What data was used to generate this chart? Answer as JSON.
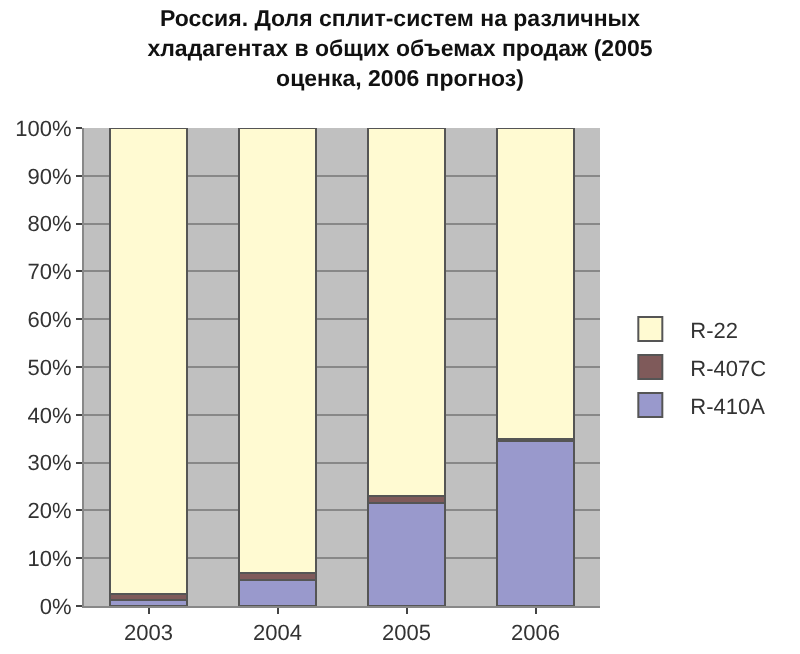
{
  "chart_data": {
    "type": "bar",
    "title": "Россия. Доля сплит-систем на различных хладагентах в общих объемах продаж (2005 оценка, 2006 прогноз)",
    "categories": [
      "2003",
      "2004",
      "2005",
      "2006"
    ],
    "series": [
      {
        "name": "R-410A",
        "color": "#9999cc",
        "values": [
          1.2,
          5.5,
          21.5,
          34.5
        ]
      },
      {
        "name": "R-407C",
        "color": "#7f5a5a",
        "values": [
          1.3,
          1.5,
          1.5,
          0.5
        ]
      },
      {
        "name": "R-22",
        "color": "#fffad2",
        "values": [
          97.5,
          93,
          77,
          65
        ]
      }
    ],
    "stacked": true,
    "ylim": [
      0,
      100
    ],
    "yticks": [
      {
        "value": 0,
        "label": "0%"
      },
      {
        "value": 10,
        "label": "10%"
      },
      {
        "value": 20,
        "label": "20%"
      },
      {
        "value": 30,
        "label": "30%"
      },
      {
        "value": 40,
        "label": "40%"
      },
      {
        "value": 50,
        "label": "50%"
      },
      {
        "value": 60,
        "label": "60%"
      },
      {
        "value": 70,
        "label": "70%"
      },
      {
        "value": 80,
        "label": "80%"
      },
      {
        "value": 90,
        "label": "90%"
      },
      {
        "value": 100,
        "label": "100%"
      }
    ],
    "grid": "y",
    "legend": "right"
  }
}
